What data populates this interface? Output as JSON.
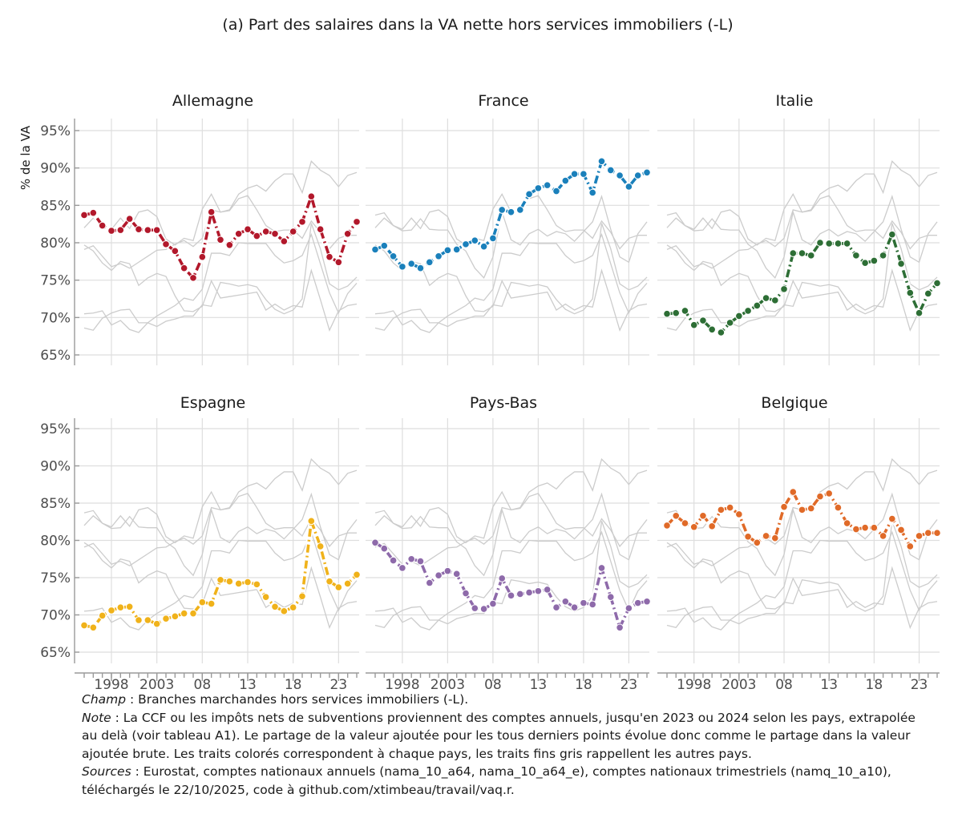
{
  "chart_data": {
    "type": "line",
    "title": "(a) Part des salaires dans la VA nette hors services immobiliers (-L)",
    "ylabel": "% de la VA",
    "xlabel": "",
    "ylim": [
      64,
      96
    ],
    "y_ticks": [
      65,
      70,
      75,
      80,
      85,
      90,
      95
    ],
    "y_tick_labels": [
      "65%",
      "70%",
      "75%",
      "80%",
      "85%",
      "90%",
      "95%"
    ],
    "x_ticks": [
      1998,
      2003,
      2008,
      2013,
      2018,
      2023
    ],
    "x_tick_labels": [
      "1998",
      "2003",
      "08",
      "13",
      "18",
      "23"
    ],
    "x": [
      1995,
      1996,
      1997,
      1998,
      1999,
      2000,
      2001,
      2002,
      2003,
      2004,
      2005,
      2006,
      2007,
      2008,
      2009,
      2010,
      2011,
      2012,
      2013,
      2014,
      2015,
      2016,
      2017,
      2018,
      2019,
      2020,
      2021,
      2022,
      2023,
      2024,
      2025
    ],
    "grid": true,
    "legend": "none (facet titles)",
    "series": [
      {
        "name": "Allemagne",
        "color": "#b2182b",
        "values": [
          83.7,
          84.0,
          82.3,
          81.6,
          81.7,
          83.2,
          81.8,
          81.7,
          81.7,
          79.8,
          78.9,
          76.6,
          75.3,
          78.1,
          84.1,
          80.4,
          79.7,
          81.2,
          81.8,
          80.9,
          81.5,
          81.2,
          80.2,
          81.5,
          82.8,
          86.2,
          81.8,
          78.1,
          77.4,
          81.2,
          82.8
        ]
      },
      {
        "name": "France",
        "color": "#1a80bb",
        "values": [
          79.1,
          79.6,
          78.2,
          76.8,
          77.2,
          76.6,
          77.4,
          78.2,
          79.0,
          79.1,
          79.8,
          80.3,
          79.5,
          80.6,
          84.4,
          84.1,
          84.4,
          86.5,
          87.3,
          87.7,
          86.9,
          88.3,
          89.2,
          89.2,
          86.7,
          90.9,
          89.7,
          89.0,
          87.5,
          89.0,
          89.4
        ]
      },
      {
        "name": "Italie",
        "color": "#2d6e35",
        "values": [
          70.5,
          70.6,
          70.9,
          69.0,
          69.6,
          68.4,
          68.0,
          69.3,
          70.2,
          70.9,
          71.6,
          72.6,
          72.3,
          73.8,
          78.6,
          78.6,
          78.3,
          80.0,
          79.9,
          79.9,
          79.9,
          78.3,
          77.3,
          77.6,
          78.3,
          81.1,
          77.2,
          73.3,
          70.6,
          73.2,
          74.6
        ]
      },
      {
        "name": "Espagne",
        "color": "#f0b21a",
        "values": [
          68.6,
          68.3,
          69.9,
          70.6,
          71.0,
          71.1,
          69.3,
          69.3,
          68.8,
          69.5,
          69.8,
          70.2,
          70.2,
          71.7,
          71.5,
          74.7,
          74.5,
          74.2,
          74.4,
          74.1,
          72.4,
          71.1,
          70.5,
          71.0,
          72.5,
          82.6,
          79.2,
          74.5,
          73.7,
          74.2,
          75.4
        ]
      },
      {
        "name": "Pays-Bas",
        "color": "#8e6aaa",
        "values": [
          79.7,
          78.9,
          77.3,
          76.3,
          77.5,
          77.2,
          74.3,
          75.3,
          75.9,
          75.5,
          72.9,
          70.9,
          70.8,
          71.5,
          74.9,
          72.6,
          72.8,
          73.0,
          73.2,
          73.4,
          71.0,
          71.8,
          71.0,
          71.6,
          71.4,
          76.3,
          72.4,
          68.3,
          70.9,
          71.6,
          71.8
        ]
      },
      {
        "name": "Belgique",
        "color": "#e06a28",
        "values": [
          82.0,
          83.3,
          82.3,
          81.8,
          83.3,
          81.9,
          84.1,
          84.4,
          83.5,
          80.5,
          79.7,
          80.6,
          80.3,
          84.5,
          86.5,
          84.1,
          84.3,
          85.9,
          86.3,
          84.4,
          82.3,
          81.5,
          81.7,
          81.7,
          80.6,
          82.9,
          81.4,
          79.2,
          80.6,
          81.0,
          81.0
        ]
      }
    ],
    "facets": [
      "Allemagne",
      "France",
      "Italie",
      "Espagne",
      "Pays-Bas",
      "Belgique"
    ]
  },
  "notes": {
    "champ_label": "Champ",
    "champ_text": " : Branches marchandes hors services immobiliers (-L).",
    "note_label": "Note",
    "note_text": " : La CCF ou les impôts nets de subventions proviennent des comptes annuels, jusqu'en 2023 ou 2024 selon les pays, extrapolée au delà (voir tableau A1). Le partage de la valeur ajoutée pour les tous derniers points évolue donc comme le partage dans la valeur ajoutée brute. Les traits colorés correspondent à chaque pays, les traits fins gris rappellent les autres pays.",
    "sources_label": "Sources",
    "sources_text": " : Eurostat, comptes nationaux annuels (nama_10_a64, nama_10_a64_e), comptes nationaux trimestriels (namq_10_a10), téléchargés le 22/10/2025, code à github.com/xtimbeau/travail/vaq.r."
  }
}
